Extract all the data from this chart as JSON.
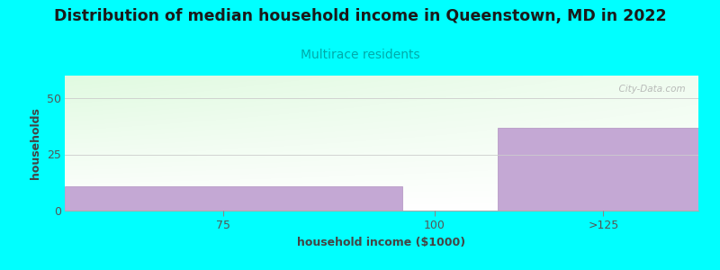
{
  "title": "Distribution of median household income in Queenstown, MD in 2022",
  "subtitle": "Multirace residents",
  "xlabel": "household income ($1000)",
  "ylabel": "households",
  "background_color": "#00FFFF",
  "bar_color": "#C4A8D4",
  "title_fontsize": 12.5,
  "subtitle_fontsize": 10,
  "label_fontsize": 9,
  "tick_fontsize": 9,
  "categories": [
    "75",
    "100",
    ">125"
  ],
  "values": [
    11,
    0,
    37
  ],
  "ylim": [
    0,
    60
  ],
  "yticks": [
    0,
    25,
    50
  ],
  "watermark": "  City-Data.com",
  "title_color": "#1a1a1a",
  "subtitle_color": "#00AAAA",
  "tick_color": "#555555",
  "label_color": "#444444"
}
